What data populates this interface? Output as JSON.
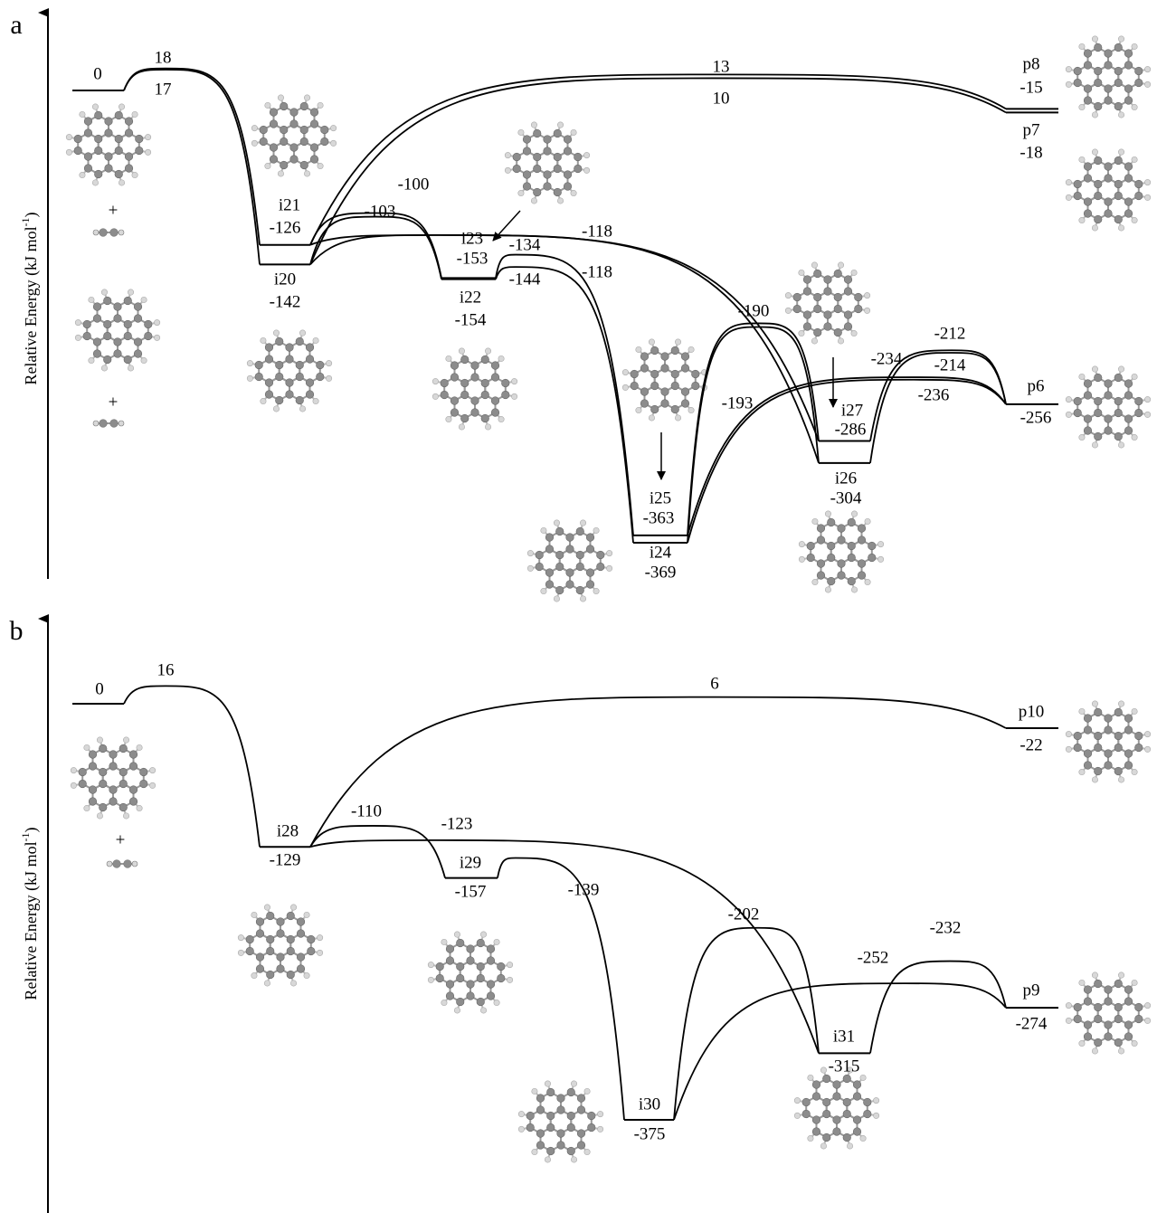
{
  "panels": [
    {
      "label": "a",
      "y_axis_label": [
        "Relative Energy (kJ mol",
        "-1",
        ")"
      ],
      "plus_signs": [
        "+",
        "+"
      ],
      "levels": [
        {
          "energy": 0
        },
        {
          "name": "i21",
          "energy": -126
        },
        {
          "name": "i20",
          "energy": -142
        },
        {
          "name": "i23",
          "energy": -153
        },
        {
          "name": "i22",
          "energy": -154
        },
        {
          "name": "i25",
          "energy": -363
        },
        {
          "name": "i24",
          "energy": -369
        },
        {
          "name": "i27",
          "energy": -286
        },
        {
          "name": "i26",
          "energy": -304
        },
        {
          "name": "p8",
          "energy": -15
        },
        {
          "name": "p7",
          "energy": -18
        },
        {
          "name": "p6",
          "energy": -256
        }
      ],
      "transitions": [
        {
          "from": 0,
          "to": 1,
          "energy": 18
        },
        {
          "from": 0,
          "to": 2,
          "energy": 17
        },
        {
          "from": 1,
          "to": 9,
          "energy": 13
        },
        {
          "from": 2,
          "to": 10,
          "energy": 10
        },
        {
          "from": 1,
          "to": 3,
          "energy": -100
        },
        {
          "from": 2,
          "to": 4,
          "energy": -103
        },
        {
          "from": 1,
          "to": 7,
          "energy": -118
        },
        {
          "from": 2,
          "to": 8,
          "energy": -118
        },
        {
          "from": 3,
          "to": 5,
          "energy": -134
        },
        {
          "from": 4,
          "to": 6,
          "energy": -144
        },
        {
          "from": 5,
          "to": 7,
          "energy": -190
        },
        {
          "from": 6,
          "to": 8,
          "energy": -193
        },
        {
          "from": 5,
          "to": 11,
          "energy": -234
        },
        {
          "from": 6,
          "to": 11,
          "energy": -236
        },
        {
          "from": 7,
          "to": 11,
          "energy": -212
        },
        {
          "from": 8,
          "to": 11,
          "energy": -214
        }
      ]
    },
    {
      "label": "b",
      "y_axis_label": [
        "Relative Energy (kJ mol",
        "-1",
        ")"
      ],
      "plus_signs": [
        "+"
      ],
      "levels": [
        {
          "energy": 0
        },
        {
          "name": "i28",
          "energy": -129
        },
        {
          "name": "i29",
          "energy": -157
        },
        {
          "name": "i30",
          "energy": -375
        },
        {
          "name": "i31",
          "energy": -315
        },
        {
          "name": "p10",
          "energy": -22
        },
        {
          "name": "p9",
          "energy": -274
        }
      ],
      "transitions": [
        {
          "from": 0,
          "to": 1,
          "energy": 16
        },
        {
          "from": 1,
          "to": 5,
          "energy": 6
        },
        {
          "from": 1,
          "to": 2,
          "energy": -110
        },
        {
          "from": 1,
          "to": 4,
          "energy": -123
        },
        {
          "from": 2,
          "to": 3,
          "energy": -139
        },
        {
          "from": 3,
          "to": 4,
          "energy": -202
        },
        {
          "from": 3,
          "to": 6,
          "energy": -252
        },
        {
          "from": 4,
          "to": 6,
          "energy": -232
        }
      ]
    }
  ]
}
